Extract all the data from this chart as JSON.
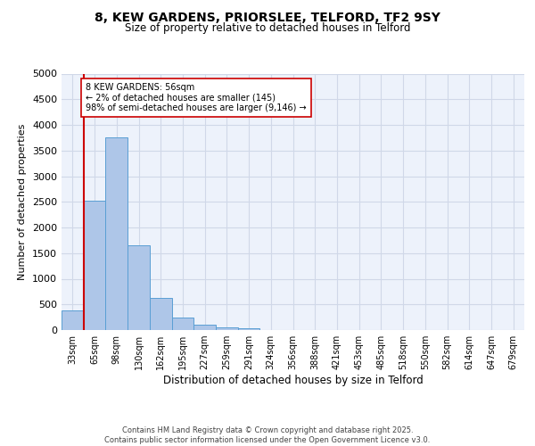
{
  "title1": "8, KEW GARDENS, PRIORSLEE, TELFORD, TF2 9SY",
  "title2": "Size of property relative to detached houses in Telford",
  "xlabel": "Distribution of detached houses by size in Telford",
  "ylabel": "Number of detached properties",
  "categories": [
    "33sqm",
    "65sqm",
    "98sqm",
    "130sqm",
    "162sqm",
    "195sqm",
    "227sqm",
    "259sqm",
    "291sqm",
    "324sqm",
    "356sqm",
    "388sqm",
    "421sqm",
    "453sqm",
    "485sqm",
    "518sqm",
    "550sqm",
    "582sqm",
    "614sqm",
    "647sqm",
    "679sqm"
  ],
  "values": [
    390,
    2530,
    3760,
    1660,
    620,
    240,
    105,
    45,
    40,
    0,
    0,
    0,
    0,
    0,
    0,
    0,
    0,
    0,
    0,
    0,
    0
  ],
  "bar_color": "#aec6e8",
  "bar_edge_color": "#5a9fd4",
  "vline_color": "#cc0000",
  "annotation_text": "8 KEW GARDENS: 56sqm\n← 2% of detached houses are smaller (145)\n98% of semi-detached houses are larger (9,146) →",
  "annotation_box_color": "#ffffff",
  "annotation_box_edge": "#cc0000",
  "ylim": [
    0,
    5000
  ],
  "yticks": [
    0,
    500,
    1000,
    1500,
    2000,
    2500,
    3000,
    3500,
    4000,
    4500,
    5000
  ],
  "grid_color": "#d0d8e8",
  "background_color": "#edf2fb",
  "footer1": "Contains HM Land Registry data © Crown copyright and database right 2025.",
  "footer2": "Contains public sector information licensed under the Open Government Licence v3.0."
}
